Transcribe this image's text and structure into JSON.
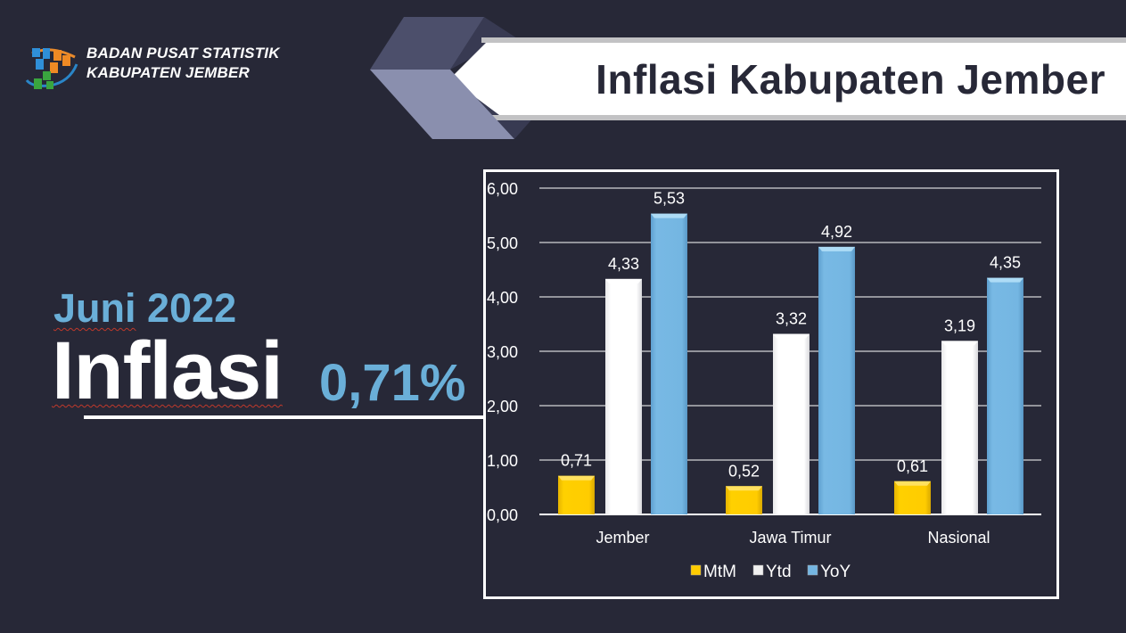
{
  "header": {
    "org_line1": "BADAN PUSAT STATISTIK",
    "org_line2": "KABUPATEN JEMBER",
    "logo_icon": "bps-logo-icon",
    "title": "Inflasi Kabupaten Jember"
  },
  "summary": {
    "period": "Juni 2022",
    "period_month": "Juni",
    "period_year": "2022",
    "label": "Inflasi",
    "value": "0,71%"
  },
  "colors": {
    "background": "#272837",
    "accent_blue": "#6aafd8",
    "mtm": "#ffcc00",
    "ytd": "#ffffff",
    "yoy": "#74b6e2"
  },
  "chart_data": {
    "type": "bar",
    "title": "",
    "xlabel": "",
    "ylabel": "",
    "ylim": [
      0,
      6
    ],
    "yticks": [
      "0,00",
      "1,00",
      "2,00",
      "3,00",
      "4,00",
      "5,00",
      "6,00"
    ],
    "grid": true,
    "legend_position": "bottom",
    "categories": [
      "Jember",
      "Jawa Timur",
      "Nasional"
    ],
    "series": [
      {
        "name": "MtM",
        "values": [
          0.71,
          0.52,
          0.61
        ],
        "labels": [
          "0,71",
          "0,52",
          "0,61"
        ],
        "color": "#ffcc00"
      },
      {
        "name": "Ytd",
        "values": [
          4.33,
          3.32,
          3.19
        ],
        "labels": [
          "4,33",
          "3,32",
          "3,19"
        ],
        "color": "#ffffff"
      },
      {
        "name": "YoY",
        "values": [
          5.53,
          4.92,
          4.35
        ],
        "labels": [
          "5,53",
          "4,92",
          "4,35"
        ],
        "color": "#74b6e2"
      }
    ]
  }
}
